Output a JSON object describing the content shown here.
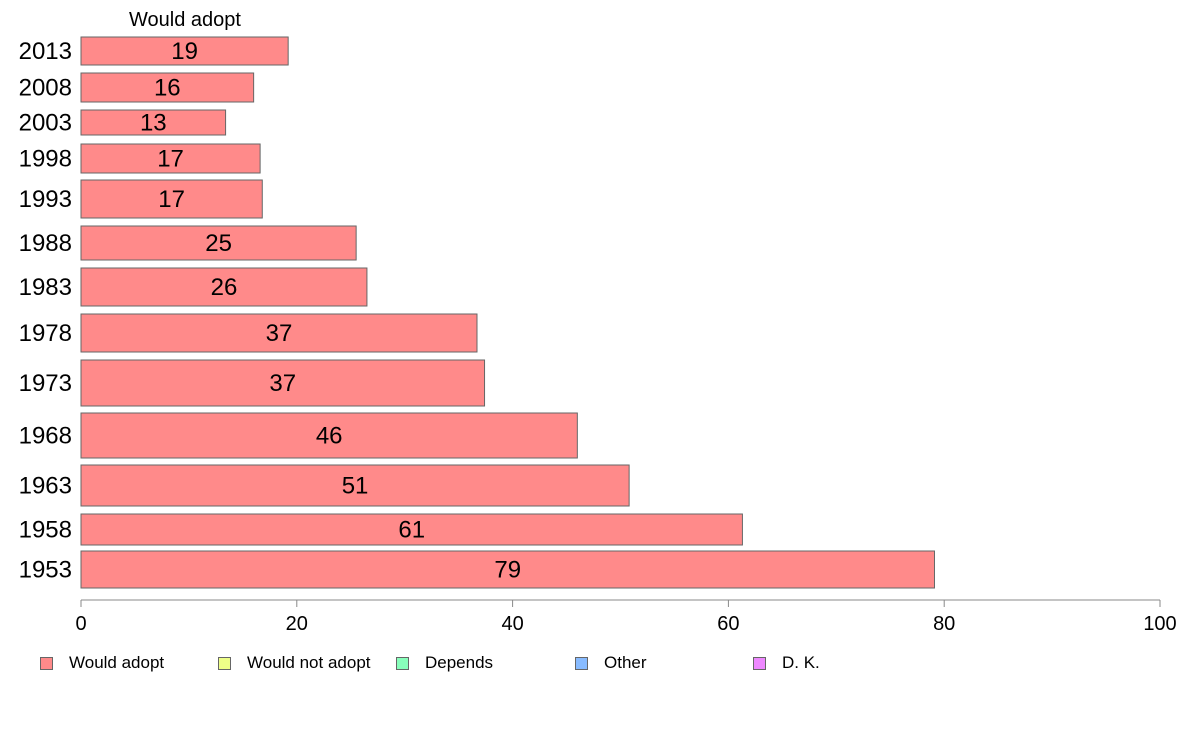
{
  "chart_data": {
    "type": "bar",
    "orientation": "horizontal",
    "title": "Would adopt",
    "categories": [
      "2013",
      "2008",
      "2003",
      "1998",
      "1993",
      "1988",
      "1983",
      "1978",
      "1973",
      "1968",
      "1963",
      "1958",
      "1953"
    ],
    "series": [
      {
        "name": "Would adopt",
        "values": [
          19.2,
          16.0,
          13.4,
          16.6,
          16.8,
          25.5,
          26.5,
          36.7,
          37.4,
          46.0,
          50.8,
          61.3,
          79.1
        ],
        "labels": [
          "19",
          "16",
          "13",
          "17",
          "17",
          "25",
          "26",
          "37",
          "37",
          "46",
          "51",
          "61",
          "79"
        ],
        "color": "#ff8a8a"
      }
    ],
    "xlim": [
      0,
      100
    ],
    "xticks": [
      0,
      20,
      40,
      60,
      80,
      100
    ],
    "grid": false,
    "legend_position": "bottom",
    "legend": [
      {
        "label": "Would adopt",
        "color": "#ff8a8a"
      },
      {
        "label": "Would not adopt",
        "color": "#eeff88"
      },
      {
        "label": "Depends",
        "color": "#88ffbb"
      },
      {
        "label": "Other",
        "color": "#88bbff"
      },
      {
        "label": "D. K.",
        "color": "#ee88ff"
      }
    ]
  }
}
